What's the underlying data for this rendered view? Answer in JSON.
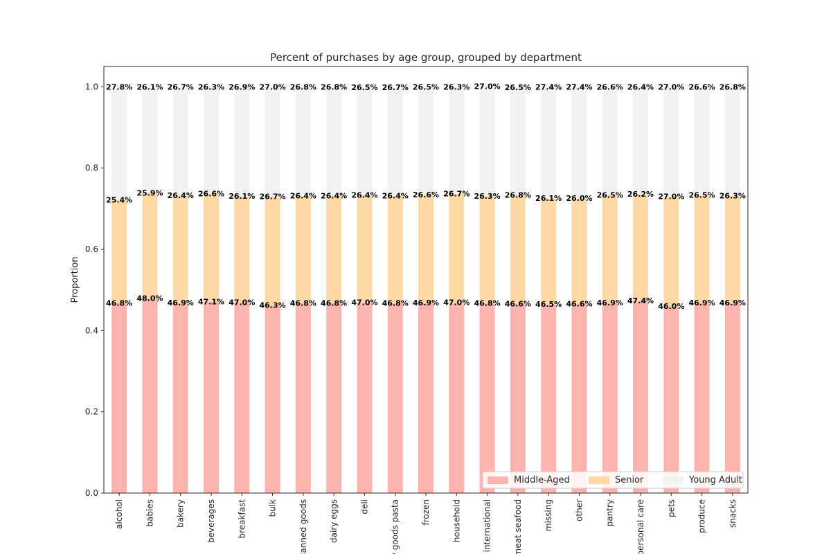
{
  "chart_data": {
    "type": "bar",
    "stacked": true,
    "title": "Percent of purchases by age group, grouped by department",
    "xlabel": "",
    "ylabel": "Proportion",
    "ylim": [
      0,
      1.05
    ],
    "yticks": [
      "0.0",
      "0.2",
      "0.4",
      "0.6",
      "0.8",
      "1.0"
    ],
    "grid": false,
    "legend_position": "bottom-right",
    "categories": [
      "alcohol",
      "babies",
      "bakery",
      "beverages",
      "breakfast",
      "bulk",
      "canned goods",
      "dairy eggs",
      "deli",
      "dry goods pasta",
      "frozen",
      "household",
      "international",
      "meat seafood",
      "missing",
      "other",
      "pantry",
      "personal care",
      "pets",
      "produce",
      "snacks"
    ],
    "series": [
      {
        "name": "Middle-Aged",
        "color": "#fbb4ae",
        "values": [
          0.468,
          0.48,
          0.469,
          0.471,
          0.47,
          0.463,
          0.468,
          0.468,
          0.47,
          0.468,
          0.469,
          0.47,
          0.468,
          0.466,
          0.465,
          0.466,
          0.469,
          0.474,
          0.46,
          0.469,
          0.469
        ],
        "labels": [
          "46.8%",
          "48.0%",
          "46.9%",
          "47.1%",
          "47.0%",
          "46.3%",
          "46.8%",
          "46.8%",
          "47.0%",
          "46.8%",
          "46.9%",
          "47.0%",
          "46.8%",
          "46.6%",
          "46.5%",
          "46.6%",
          "46.9%",
          "47.4%",
          "46.0%",
          "46.9%",
          "46.9%"
        ]
      },
      {
        "name": "Senior",
        "color": "#fed9a6",
        "values": [
          0.254,
          0.259,
          0.264,
          0.266,
          0.261,
          0.267,
          0.264,
          0.264,
          0.264,
          0.264,
          0.266,
          0.267,
          0.263,
          0.268,
          0.261,
          0.26,
          0.265,
          0.262,
          0.27,
          0.265,
          0.263
        ],
        "labels": [
          "25.4%",
          "25.9%",
          "26.4%",
          "26.6%",
          "26.1%",
          "26.7%",
          "26.4%",
          "26.4%",
          "26.4%",
          "26.4%",
          "26.6%",
          "26.7%",
          "26.3%",
          "26.8%",
          "26.1%",
          "26.0%",
          "26.5%",
          "26.2%",
          "27.0%",
          "26.5%",
          "26.3%"
        ]
      },
      {
        "name": "Young Adult",
        "color": "#f2f2f2",
        "values": [
          0.278,
          0.261,
          0.267,
          0.263,
          0.269,
          0.27,
          0.268,
          0.268,
          0.265,
          0.267,
          0.265,
          0.263,
          0.27,
          0.265,
          0.274,
          0.274,
          0.266,
          0.264,
          0.27,
          0.266,
          0.268
        ],
        "labels": [
          "27.8%",
          "26.1%",
          "26.7%",
          "26.3%",
          "26.9%",
          "27.0%",
          "26.8%",
          "26.8%",
          "26.5%",
          "26.7%",
          "26.5%",
          "26.3%",
          "27.0%",
          "26.5%",
          "27.4%",
          "27.4%",
          "26.6%",
          "26.4%",
          "27.0%",
          "26.6%",
          "26.8%"
        ]
      }
    ]
  }
}
